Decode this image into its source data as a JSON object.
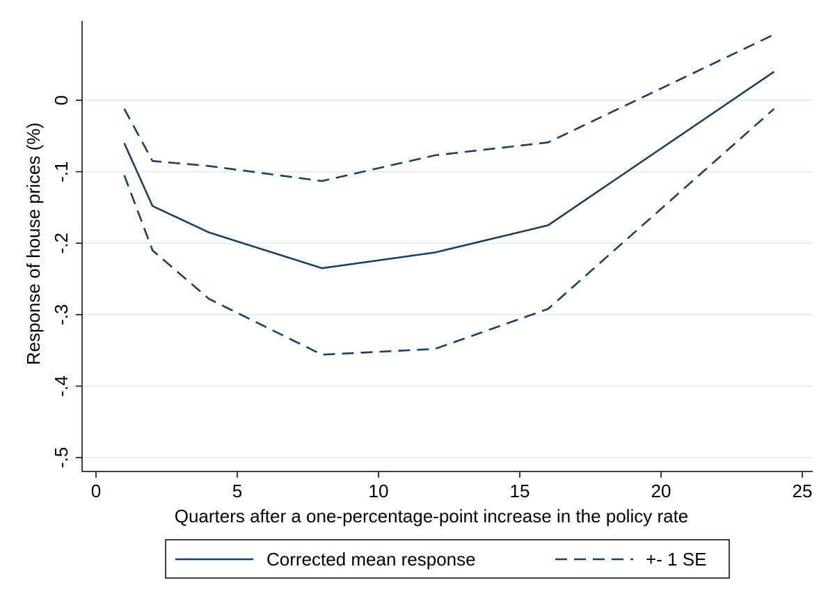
{
  "chart_data": {
    "type": "line",
    "title": "",
    "xlabel": "Quarters after a one-percentage-point increase in the policy rate",
    "ylabel": "Response of house prices (%)",
    "xlim": [
      0,
      25
    ],
    "ylim": [
      -0.5,
      0
    ],
    "xticks": [
      0,
      5,
      10,
      15,
      20,
      25
    ],
    "xtick_labels": [
      "0",
      "5",
      "10",
      "15",
      "20",
      "25"
    ],
    "yticks": [
      -0.5,
      -0.4,
      -0.3,
      -0.2,
      -0.1,
      0
    ],
    "ytick_labels": [
      "-.5",
      "-.4",
      "-.3",
      "-.2",
      "-.1",
      "0"
    ],
    "grid": "horizontal",
    "legend_position": "bottom",
    "colors": {
      "line": "#1f3f61",
      "grid": "#e7eef0",
      "axis": "#000000"
    },
    "x": [
      1,
      2,
      4,
      8,
      12,
      16,
      24
    ],
    "series": [
      {
        "name": "Corrected mean response",
        "style": "solid",
        "values": [
          -0.06,
          -0.148,
          -0.185,
          -0.235,
          -0.213,
          -0.175,
          0.04
        ]
      },
      {
        "name": "+- 1 SE",
        "style": "dashed",
        "values": [
          -0.012,
          -0.085,
          -0.092,
          -0.113,
          -0.077,
          -0.059,
          0.092
        ]
      },
      {
        "name": "",
        "style": "dashed",
        "values": [
          -0.105,
          -0.21,
          -0.278,
          -0.356,
          -0.348,
          -0.292,
          -0.012
        ]
      }
    ]
  }
}
